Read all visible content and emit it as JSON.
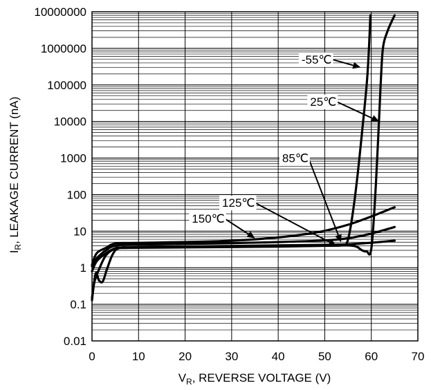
{
  "chart_data": {
    "type": "line",
    "title": "",
    "xlabel": {
      "main": "V",
      "sub": "R",
      "rest": ", REVERSE VOLTAGE (V)"
    },
    "ylabel": {
      "main": "I",
      "sub": "R",
      "rest": ", LEAKAGE CURRENT (nA)"
    },
    "xlim": [
      0,
      70
    ],
    "ylim": [
      0.01,
      10000000
    ],
    "yscale": "log",
    "grid": true,
    "x_ticks": [
      0,
      10,
      20,
      30,
      40,
      50,
      60,
      70
    ],
    "x_tick_labels": [
      "0",
      "10",
      "20",
      "30",
      "40",
      "50",
      "60",
      "70"
    ],
    "y_ticks": [
      0.01,
      0.1,
      1,
      10,
      100,
      1000,
      10000,
      100000,
      1000000,
      10000000
    ],
    "y_tick_labels": [
      "0.01",
      "0.1",
      "1",
      "10",
      "100",
      "1000",
      "10000",
      "100000",
      "1000000",
      "10000000"
    ],
    "series": [
      {
        "name": "-55℃",
        "points": [
          [
            0,
            0.13
          ],
          [
            0.5,
            0.4
          ],
          [
            1.5,
            0.9
          ],
          [
            3,
            2.2
          ],
          [
            5,
            3.3
          ],
          [
            8,
            3.5
          ],
          [
            20,
            3.6
          ],
          [
            40,
            3.8
          ],
          [
            50,
            4
          ],
          [
            54,
            4.2
          ],
          [
            55,
            6
          ],
          [
            56,
            30
          ],
          [
            57,
            300
          ],
          [
            58,
            5000
          ],
          [
            59,
            100000
          ],
          [
            59.5,
            1000000
          ],
          [
            59.8,
            8000000
          ]
        ],
        "label_pos": [
          36.5,
          67
        ]
      },
      {
        "name": "25℃",
        "points": [
          [
            0,
            0.15
          ],
          [
            0.8,
            0.7
          ],
          [
            1.5,
            0.45
          ],
          [
            2.3,
            0.42
          ],
          [
            3.2,
            0.9
          ],
          [
            4.5,
            2.4
          ],
          [
            6,
            3.5
          ],
          [
            10,
            3.6
          ],
          [
            30,
            3.8
          ],
          [
            50,
            4
          ],
          [
            56,
            4
          ],
          [
            58,
            3
          ],
          [
            59,
            2.8
          ],
          [
            60,
            3.3
          ],
          [
            61,
            200
          ],
          [
            62,
            100000
          ],
          [
            62.5,
            1000000
          ],
          [
            63.5,
            3000000
          ],
          [
            65,
            8000000
          ]
        ],
        "label_pos": [
          35.8,
          191
        ]
      },
      {
        "name": "85℃",
        "points": [
          [
            0,
            0.8
          ],
          [
            1,
            1.5
          ],
          [
            3,
            2.5
          ],
          [
            5,
            3.4
          ],
          [
            7,
            3.6
          ],
          [
            20,
            3.8
          ],
          [
            40,
            4.1
          ],
          [
            55,
            4.4
          ],
          [
            65,
            5.5
          ]
        ],
        "label_pos": [
          28.5,
          308
        ]
      },
      {
        "name": "125℃",
        "points": [
          [
            0,
            1.1
          ],
          [
            1,
            1.8
          ],
          [
            3,
            3
          ],
          [
            5,
            4
          ],
          [
            10,
            4.3
          ],
          [
            30,
            4.7
          ],
          [
            50,
            5.6
          ],
          [
            58,
            7.5
          ],
          [
            65,
            13
          ]
        ],
        "label_pos": [
          21.8,
          417
        ]
      },
      {
        "name": "150℃",
        "points": [
          [
            0,
            1.2
          ],
          [
            1,
            2.5
          ],
          [
            3,
            3.5
          ],
          [
            5,
            4.6
          ],
          [
            10,
            4.8
          ],
          [
            30,
            5.5
          ],
          [
            45,
            8
          ],
          [
            55,
            15
          ],
          [
            65,
            45
          ]
        ],
        "label_pos": [
          16,
          574
        ]
      }
    ],
    "annotations": [
      {
        "text": "-55℃",
        "from": [
          51.5,
          500000
        ],
        "to": [
          57.7,
          300000
        ]
      },
      {
        "text": "25℃",
        "from": [
          52.5,
          35000
        ],
        "to": [
          61.7,
          10000
        ]
      },
      {
        "text": "85℃",
        "from": [
          46.5,
          1000
        ],
        "to": [
          53.5,
          5
        ]
      },
      {
        "text": "125℃",
        "from": [
          35,
          60
        ],
        "to": [
          52.5,
          4
        ]
      },
      {
        "text": "150℃",
        "from": [
          28.5,
          22
        ],
        "to": [
          35,
          6.4
        ]
      }
    ]
  }
}
